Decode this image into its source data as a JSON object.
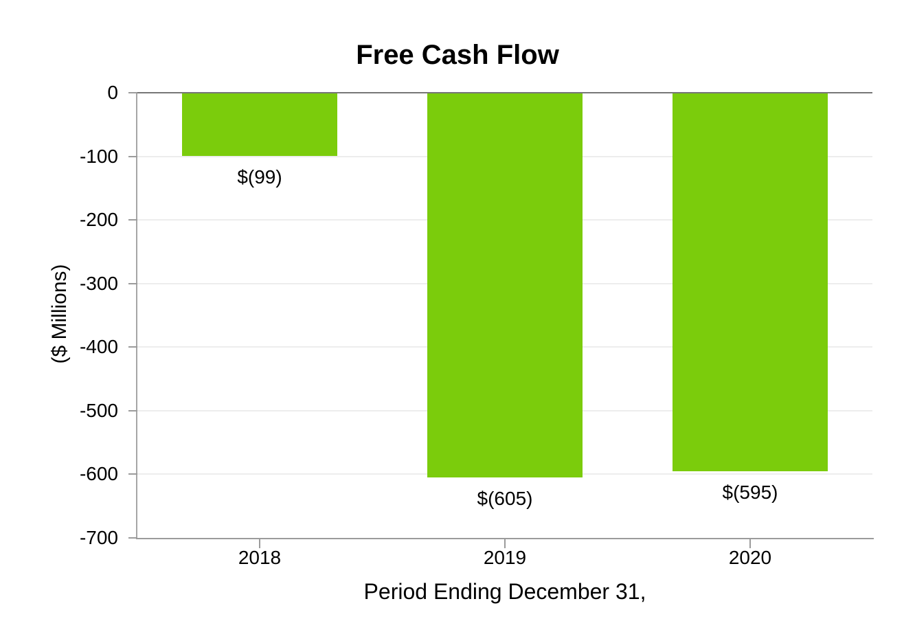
{
  "chart_data": {
    "type": "bar",
    "title": "Free Cash Flow",
    "xlabel": "Period Ending December 31,",
    "ylabel": "($ Millions)",
    "categories": [
      "2018",
      "2019",
      "2020"
    ],
    "values": [
      -99,
      -605,
      -595
    ],
    "bar_labels": [
      "$(99)",
      "$(605)",
      "$(595)"
    ],
    "ylim": [
      -700,
      0
    ],
    "yticks": [
      0,
      -100,
      -200,
      -300,
      -400,
      -500,
      -600,
      -700
    ],
    "ytick_labels": [
      "0",
      "-100",
      "-200",
      "-300",
      "-400",
      "-500",
      "-600",
      "-700"
    ],
    "grid": true,
    "legend": "none",
    "bar_color": "#7bcc0c",
    "gridline_color": "#ededed",
    "zero_line_color": "#767676",
    "axis_color": "#9b9b9b",
    "text_color": "#000000"
  }
}
